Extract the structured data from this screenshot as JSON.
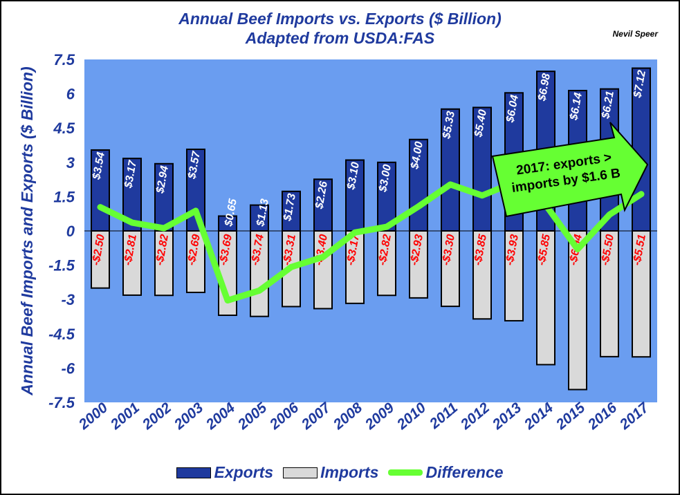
{
  "chart_data": {
    "type": "bar",
    "title": "Annual Beef Imports vs. Exports ($ Billion)",
    "subtitle": "Adapted from USDA:FAS",
    "author": "Nevil Speer",
    "ylabel": "Annual Beef Imports and Exports ($ Billion)",
    "xlabel": "",
    "ylim": [
      -7.5,
      7.5
    ],
    "yticks": [
      "7.5",
      "6",
      "4.5",
      "3",
      "1.5",
      "0",
      "-1.5",
      "-3",
      "-4.5",
      "-6",
      "-7.5"
    ],
    "ytick_values": [
      7.5,
      6,
      4.5,
      3,
      1.5,
      0,
      -1.5,
      -3,
      -4.5,
      -6,
      -7.5
    ],
    "categories": [
      "2000",
      "2001",
      "2002",
      "2003",
      "2004",
      "2005",
      "2006",
      "2007",
      "2008",
      "2009",
      "2010",
      "2011",
      "2012",
      "2013",
      "2014",
      "2015",
      "2016",
      "2017"
    ],
    "series": [
      {
        "name": "Exports",
        "type": "bar",
        "color": "#1f3a9e",
        "values": [
          3.54,
          3.17,
          2.94,
          3.57,
          0.65,
          1.13,
          1.73,
          2.26,
          3.1,
          3.0,
          4.0,
          5.33,
          5.4,
          6.04,
          6.98,
          6.14,
          6.21,
          7.12
        ],
        "labels": [
          "$3.54",
          "$3.17",
          "$2.94",
          "$3.57",
          "$0.65",
          "$1.13",
          "$1.73",
          "$2.26",
          "$3.10",
          "$3.00",
          "$4.00",
          "$5.33",
          "$5.40",
          "$6.04",
          "$6.98",
          "$6.14",
          "$6.21",
          "$7.12"
        ]
      },
      {
        "name": "Imports",
        "type": "bar",
        "color": "#d9d9d9",
        "values": [
          -2.5,
          -2.81,
          -2.82,
          -2.69,
          -3.69,
          -3.74,
          -3.31,
          -3.4,
          -3.17,
          -2.82,
          -2.93,
          -3.3,
          -3.85,
          -3.93,
          -5.85,
          -6.94,
          -5.5,
          -5.51
        ],
        "labels": [
          "-$2.50",
          "-$2.81",
          "-$2.82",
          "-$2.69",
          "-$3.69",
          "-$3.74",
          "-$3.31",
          "-$3.40",
          "-$3.17",
          "-$2.82",
          "-$2.93",
          "-$3.30",
          "-$3.85",
          "-$3.93",
          "-$5.85",
          "-$6.94",
          "-$5.50",
          "-$5.51"
        ]
      },
      {
        "name": "Difference",
        "type": "line",
        "color": "#66ff33",
        "values": [
          1.04,
          0.36,
          0.12,
          0.88,
          -3.04,
          -2.61,
          -1.58,
          -1.14,
          -0.07,
          0.18,
          1.07,
          2.03,
          1.55,
          2.11,
          1.13,
          -0.8,
          0.71,
          1.61
        ]
      }
    ],
    "annotation": {
      "lines": [
        "2017:  exports >",
        "imports by $1.6 B"
      ],
      "fill": "#66ff33"
    },
    "colors": {
      "plot_bg": "#6a9df0",
      "axis_text": "#1f3a9e",
      "export_label": "#ffffff",
      "import_label": "#ff0000"
    },
    "grid": false,
    "legend": "bottom"
  }
}
